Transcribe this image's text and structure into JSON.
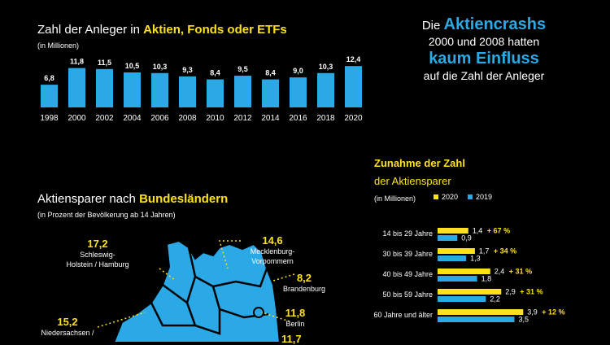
{
  "bar_chart": {
    "title_plain": "Zahl der Anleger in ",
    "title_bold": "Aktien, Fonds oder ETFs",
    "subtitle": "(in Millionen)"
  },
  "headline": {
    "line1_plain": "Die ",
    "line1_bold": "Aktiencrashs",
    "line2": "2000 und 2008 hatten",
    "line3_bold": "kaum Einfluss",
    "line4": "auf die Zahl der Anleger"
  },
  "map_section": {
    "title_plain": "Aktiensparer nach ",
    "title_bold": "Bundesländern",
    "subtitle": "(in Prozent der Bevölkerung ab 14 Jahren)",
    "regions": [
      {
        "value": "17,2",
        "name_line1": "Schleswig-",
        "name_line2": "Holstein / Hamburg"
      },
      {
        "value": "14,6",
        "name_line1": "Mecklenburg-",
        "name_line2": "Vorpommern"
      },
      {
        "value": "8,2",
        "name_line1": "Brandenburg",
        "name_line2": ""
      },
      {
        "value": "11,8",
        "name_line1": "Berlin",
        "name_line2": ""
      },
      {
        "value": "15,2",
        "name_line1": "Niedersachsen /",
        "name_line2": ""
      },
      {
        "value": "11,7",
        "name_line1": "",
        "name_line2": ""
      }
    ]
  },
  "group_section": {
    "title_line1": "Zunahme der Zahl",
    "title_line2": "der Aktiensparer",
    "subtitle": "(in Millionen)"
  },
  "colors": {
    "yellow": "#ffe11b",
    "blue": "#2aa9e6",
    "background": "#000000"
  },
  "chart_data": [
    {
      "type": "bar",
      "title": "Zahl der Anleger in Aktien, Fonds oder ETFs",
      "subtitle": "(in Millionen)",
      "categories": [
        "1998",
        "2000",
        "2002",
        "2004",
        "2006",
        "2008",
        "2010",
        "2012",
        "2014",
        "2016",
        "2018",
        "2020"
      ],
      "values": [
        6.8,
        11.8,
        11.5,
        10.5,
        10.3,
        9.3,
        8.4,
        9.5,
        8.4,
        9.0,
        10.3,
        12.4
      ],
      "value_labels": [
        "6,8",
        "11,8",
        "11,5",
        "10,5",
        "10,3",
        "9,3",
        "8,4",
        "9,5",
        "8,4",
        "9,0",
        "10,3",
        "12,4"
      ]
    },
    {
      "type": "bar",
      "orientation": "horizontal",
      "title": "Zunahme der Zahl der Aktiensparer",
      "subtitle": "(in Millionen)",
      "categories": [
        "14 bis 29 Jahre",
        "30 bis 39 Jahre",
        "40 bis 49 Jahre",
        "50 bis 59 Jahre",
        "60 Jahre und älter"
      ],
      "series": [
        {
          "name": "2020",
          "values": [
            1.4,
            1.7,
            2.4,
            2.9,
            3.9
          ],
          "labels": [
            "1,4",
            "1,7",
            "2,4",
            "2,9",
            "3,9"
          ]
        },
        {
          "name": "2019",
          "values": [
            0.9,
            1.3,
            1.8,
            2.2,
            3.5
          ],
          "labels": [
            "0,9",
            "1,3",
            "1,8",
            "2,2",
            "3,5"
          ]
        }
      ],
      "change_labels": [
        "+ 67 %",
        "+ 34 %",
        "+ 31 %",
        "+ 31 %",
        "+ 12 %"
      ]
    }
  ]
}
